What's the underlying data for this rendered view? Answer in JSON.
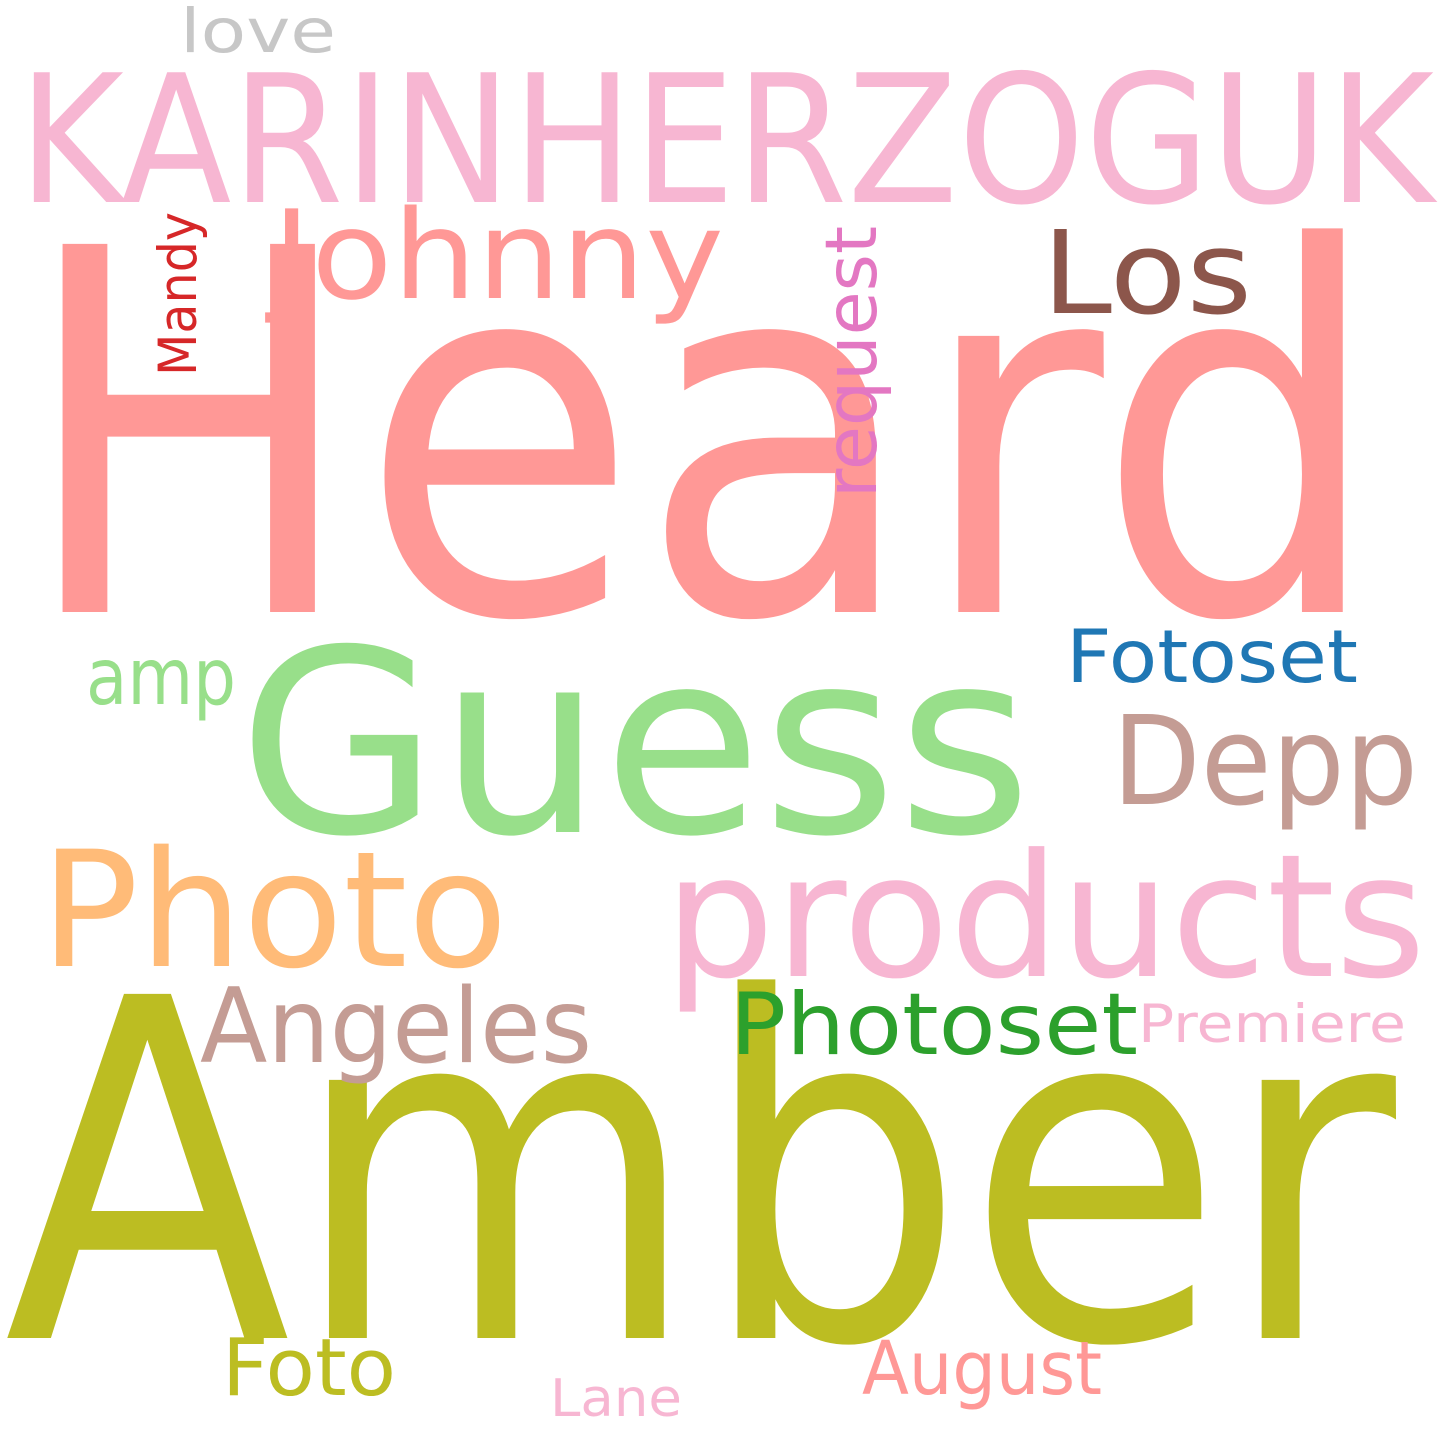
{
  "background": "#ffffff",
  "words": [
    {
      "id": "heard",
      "text": "Heard",
      "color": "#ff9896",
      "rotated": false
    },
    {
      "id": "amber",
      "text": "Amber",
      "color": "#bcbd22",
      "rotated": false
    },
    {
      "id": "guess",
      "text": "Guess",
      "color": "#98df8a",
      "rotated": false
    },
    {
      "id": "karinherzoguk",
      "text": "KARINHERZOGUK",
      "color": "#f7b6d2",
      "rotated": false
    },
    {
      "id": "products",
      "text": "products",
      "color": "#f7b6d2",
      "rotated": false
    },
    {
      "id": "photo",
      "text": "Photo",
      "color": "#ffbb78",
      "rotated": false
    },
    {
      "id": "johnny",
      "text": "Johnny",
      "color": "#ff9896",
      "rotated": false
    },
    {
      "id": "depp",
      "text": "Depp",
      "color": "#c49c94",
      "rotated": false
    },
    {
      "id": "los",
      "text": "Los",
      "color": "#8c564b",
      "rotated": false
    },
    {
      "id": "angeles",
      "text": "Angeles",
      "color": "#c49c94",
      "rotated": false
    },
    {
      "id": "photoset",
      "text": "Photoset",
      "color": "#2ca02c",
      "rotated": false
    },
    {
      "id": "fotoset",
      "text": "Fotoset",
      "color": "#1f77b4",
      "rotated": false
    },
    {
      "id": "request",
      "text": "request",
      "color": "#e377c2",
      "rotated": true
    },
    {
      "id": "amp",
      "text": "amp",
      "color": "#98df8a",
      "rotated": false
    },
    {
      "id": "foto",
      "text": "Foto",
      "color": "#bcbd22",
      "rotated": false
    },
    {
      "id": "august",
      "text": "August",
      "color": "#ff9896",
      "rotated": false
    },
    {
      "id": "premiere",
      "text": "Premiere",
      "color": "#f7b6d2",
      "rotated": false
    },
    {
      "id": "mandy",
      "text": "Mandy",
      "color": "#d62728",
      "rotated": true
    },
    {
      "id": "love",
      "text": "love",
      "color": "#c7c7c7",
      "rotated": false
    },
    {
      "id": "lane",
      "text": "Lane",
      "color": "#f7b6d2",
      "rotated": false
    }
  ]
}
